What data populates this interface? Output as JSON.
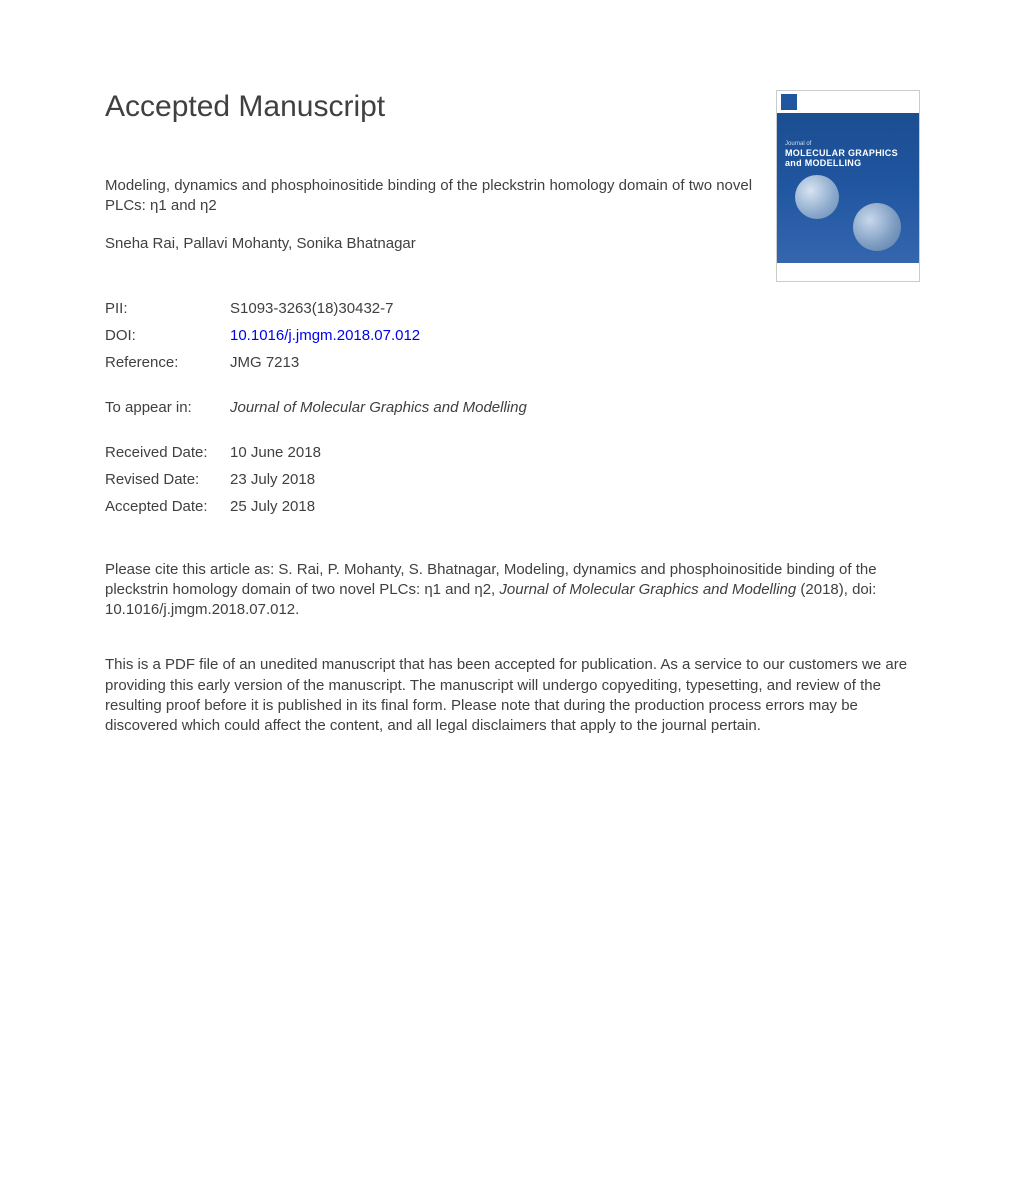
{
  "heading": "Accepted Manuscript",
  "article_title": "Modeling, dynamics and phosphoinositide binding of the pleckstrin homology domain of two novel PLCs: η1 and η2",
  "authors": "Sneha Rai, Pallavi Mohanty, Sonika Bhatnagar",
  "meta": {
    "pii_label": "PII:",
    "pii_value": "S1093-3263(18)30432-7",
    "doi_label": "DOI:",
    "doi_value": "10.1016/j.jmgm.2018.07.012",
    "ref_label": "Reference:",
    "ref_value": "JMG 7213"
  },
  "appear": {
    "label": "To appear in:",
    "value": "Journal of Molecular Graphics and Modelling"
  },
  "dates": {
    "received_label": "Received Date:",
    "received_value": "10 June 2018",
    "revised_label": "Revised Date:",
    "revised_value": "23 July 2018",
    "accepted_label": "Accepted Date:",
    "accepted_value": "25 July 2018"
  },
  "citation": {
    "prefix": "Please cite this article as: S. Rai, P. Mohanty, S. Bhatnagar, Modeling, dynamics and phosphoinositide binding of the pleckstrin homology domain of two novel PLCs: η1 and η2, ",
    "journal": "Journal of Molecular Graphics and Modelling",
    "suffix": " (2018), doi: 10.1016/j.jmgm.2018.07.012."
  },
  "disclaimer": "This is a PDF file of an unedited manuscript that has been accepted for publication. As a service to our customers we are providing this early version of the manuscript. The manuscript will undergo copyediting, typesetting, and review of the resulting proof before it is published in its final form. Please note that during the production process errors may be discovered which could affect the content, and all legal disclaimers that apply to the journal pertain.",
  "cover": {
    "prefix": "Journal of",
    "line1": "MOLECULAR GRAPHICS",
    "line2": "and MODELLING"
  }
}
